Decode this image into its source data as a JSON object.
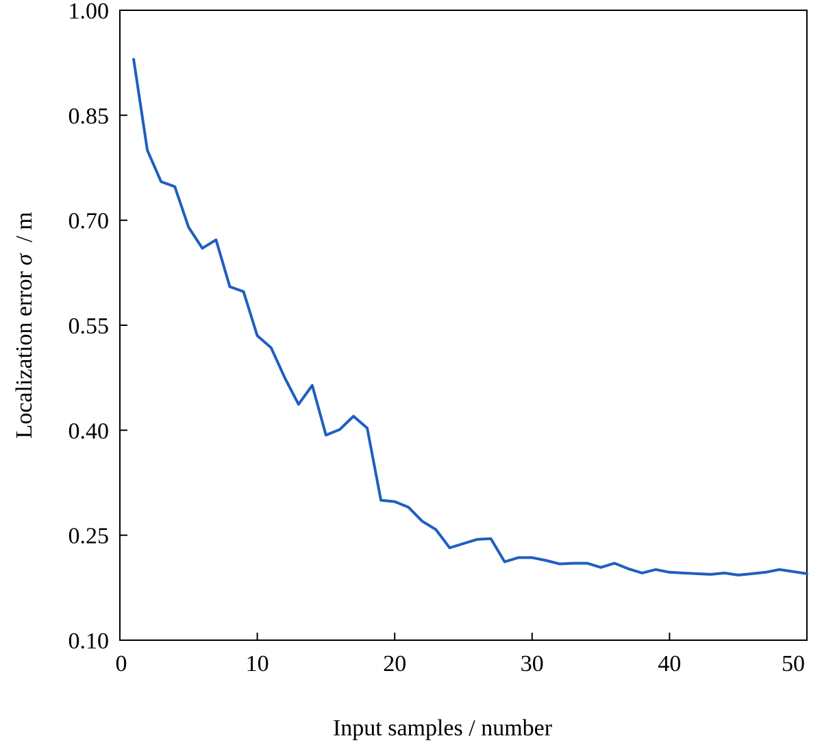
{
  "chart_data": {
    "type": "line",
    "title": "",
    "xlabel": "Input samples / number",
    "ylabel": {
      "prefix": "Localization error ",
      "symbol": "σ",
      "suffix": "  / m"
    },
    "xlim": [
      0,
      50
    ],
    "ylim": [
      0.1,
      1.0
    ],
    "xticks": [
      "0",
      "10",
      "20",
      "30",
      "40",
      "50"
    ],
    "yticks": [
      "0.10",
      "0.25",
      "0.40",
      "0.55",
      "0.70",
      "0.85",
      "1.00"
    ],
    "grid": false,
    "line_color": "#1f5fbf",
    "series": [
      {
        "x": [
          1,
          2,
          3,
          4,
          5,
          6,
          7,
          8,
          9,
          10,
          11,
          12,
          13,
          14,
          15,
          16,
          17,
          18,
          19,
          20,
          21,
          22,
          23,
          24,
          25,
          26,
          27,
          28,
          29,
          30,
          31,
          32,
          33,
          34,
          35,
          36,
          37,
          38,
          39,
          40,
          41,
          42,
          43,
          44,
          45,
          46,
          47,
          48,
          49,
          50
        ],
        "values": [
          0.93,
          0.8,
          0.755,
          0.748,
          0.69,
          0.66,
          0.672,
          0.605,
          0.598,
          0.535,
          0.518,
          0.475,
          0.437,
          0.464,
          0.393,
          0.401,
          0.42,
          0.403,
          0.3,
          0.298,
          0.29,
          0.27,
          0.258,
          0.232,
          0.238,
          0.244,
          0.245,
          0.212,
          0.218,
          0.218,
          0.214,
          0.209,
          0.21,
          0.21,
          0.204,
          0.21,
          0.202,
          0.196,
          0.201,
          0.197,
          0.196,
          0.195,
          0.194,
          0.196,
          0.193,
          0.195,
          0.197,
          0.201,
          0.198,
          0.195
        ]
      }
    ]
  }
}
